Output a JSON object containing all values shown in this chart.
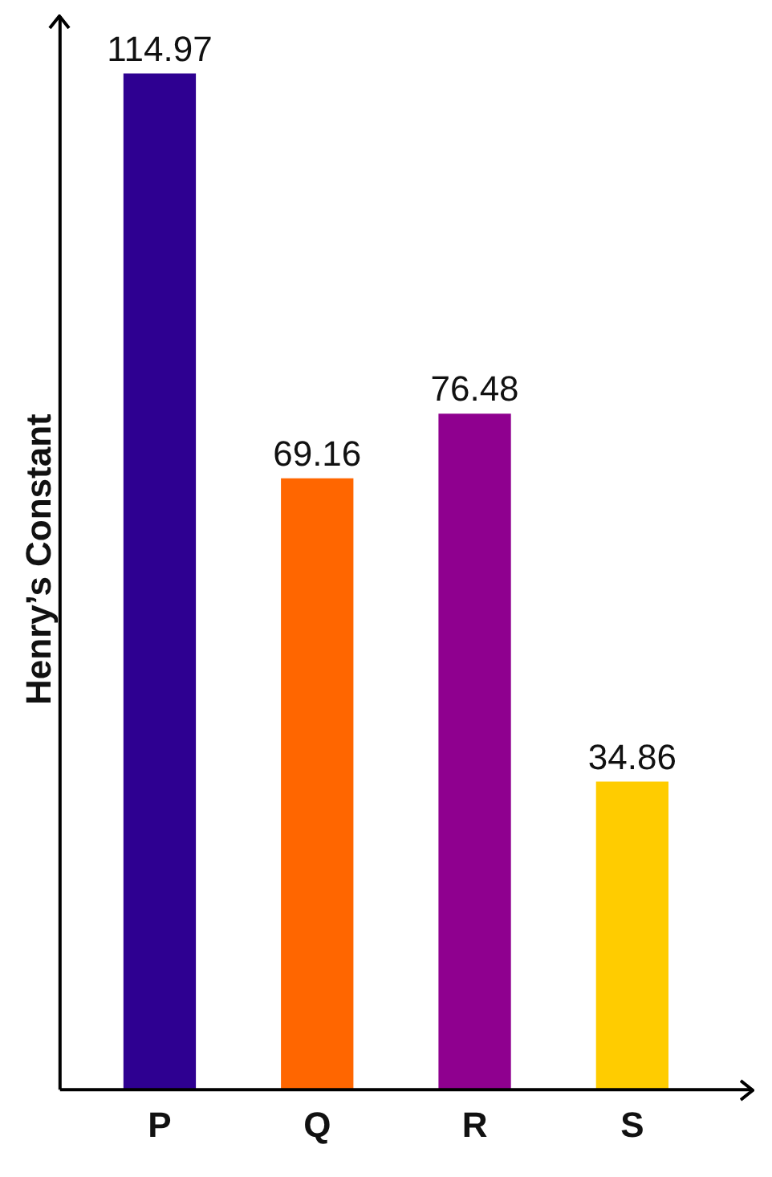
{
  "chart_data": {
    "type": "bar",
    "ylabel": "Henry’s Constant",
    "categories": [
      "P",
      "Q",
      "R",
      "S"
    ],
    "values": [
      114.97,
      69.16,
      76.48,
      34.86
    ],
    "colors": [
      "#2e0091",
      "#ff6600",
      "#8f008f",
      "#ffcc00"
    ],
    "data_labels": true,
    "grid": false,
    "legend": false,
    "tick_labels": "x"
  }
}
